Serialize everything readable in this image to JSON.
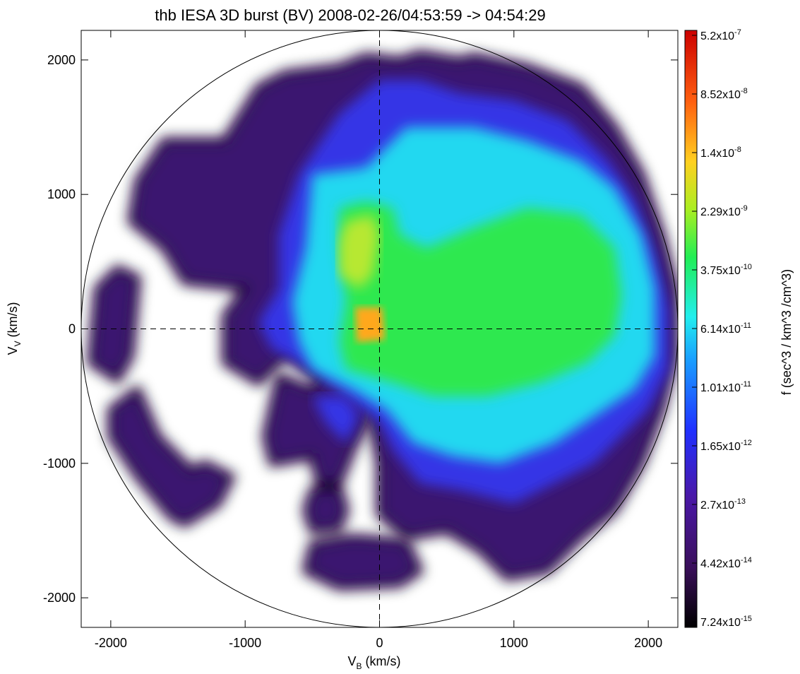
{
  "chart_data": {
    "type": "heatmap",
    "title": "thb IESA 3D burst (BV) 2008-02-26/04:53:59 -> 04:54:29",
    "xlabel": {
      "main": "V",
      "sub": "B",
      "unit": " (km/s)"
    },
    "ylabel": {
      "main": "V",
      "sub": "V",
      "unit": " (km/s)"
    },
    "xlim": [
      -2220,
      2220
    ],
    "ylim": [
      -2220,
      2220
    ],
    "x_ticks": [
      -2000,
      -1000,
      0,
      1000,
      2000
    ],
    "y_ticks": [
      -2000,
      -1000,
      0,
      1000,
      2000
    ],
    "x_tick_labels": [
      "-2000",
      "-1000",
      "0",
      "1000",
      "2000"
    ],
    "y_tick_labels": [
      "-2000",
      "-1000",
      "0",
      "1000",
      "2000"
    ],
    "circle_radius": 2220,
    "zero_lines": "dashed",
    "colorbar": {
      "label": "f (sec^3 / km^3 /cm^3)",
      "scale": "log",
      "range": [
        7.24e-15,
        5.2e-07
      ],
      "ticks": [
        {
          "mant": "5.2",
          "exp": "-7"
        },
        {
          "mant": "8.52",
          "exp": "-8"
        },
        {
          "mant": "1.4",
          "exp": "-8"
        },
        {
          "mant": "2.29",
          "exp": "-9"
        },
        {
          "mant": "3.75",
          "exp": "-10"
        },
        {
          "mant": "6.14",
          "exp": "-11"
        },
        {
          "mant": "1.01",
          "exp": "-11"
        },
        {
          "mant": "1.65",
          "exp": "-12"
        },
        {
          "mant": "2.7",
          "exp": "-13"
        },
        {
          "mant": "4.42",
          "exp": "-14"
        },
        {
          "mant": "7.24",
          "exp": "-15"
        }
      ]
    },
    "regions": [
      {
        "level": "purple",
        "polygons": [
          [
            [
              -1800,
              1100
            ],
            [
              -1600,
              1400
            ],
            [
              -1150,
              1400
            ],
            [
              -900,
              1800
            ],
            [
              -700,
              1900
            ],
            [
              -300,
              1950
            ],
            [
              -100,
              2030
            ],
            [
              150,
              2000
            ],
            [
              300,
              2050
            ],
            [
              600,
              2000
            ],
            [
              700,
              2030
            ],
            [
              1100,
              1950
            ],
            [
              1500,
              1800
            ],
            [
              1750,
              1500
            ],
            [
              1950,
              1150
            ],
            [
              2100,
              700
            ],
            [
              2200,
              300
            ],
            [
              2200,
              -200
            ],
            [
              2100,
              -600
            ],
            [
              1950,
              -1000
            ],
            [
              1750,
              -1350
            ],
            [
              1500,
              -1550
            ],
            [
              1250,
              -1800
            ],
            [
              950,
              -1850
            ],
            [
              750,
              -1650
            ],
            [
              500,
              -1500
            ],
            [
              200,
              -1550
            ],
            [
              0,
              -1380
            ],
            [
              0,
              -1000
            ],
            [
              -100,
              -500
            ],
            [
              -500,
              -350
            ],
            [
              -700,
              -200
            ],
            [
              -900,
              -400
            ],
            [
              -1150,
              -250
            ],
            [
              -1150,
              100
            ],
            [
              -1000,
              300
            ],
            [
              -1450,
              350
            ],
            [
              -1600,
              600
            ],
            [
              -1850,
              800
            ],
            [
              -1800,
              1100
            ]
          ]
        ]
      },
      {
        "level": "purple",
        "polygons": [
          [
            [
              -300,
              -150
            ],
            [
              -500,
              -450
            ],
            [
              -750,
              -350
            ],
            [
              -850,
              -800
            ],
            [
              -800,
              -1000
            ],
            [
              -500,
              -950
            ],
            [
              -450,
              -1150
            ],
            [
              -300,
              -1150
            ],
            [
              -200,
              -900
            ],
            [
              -100,
              -700
            ],
            [
              -50,
              -500
            ],
            [
              0,
              -300
            ],
            [
              -300,
              -150
            ]
          ],
          [
            [
              -500,
              -1200
            ],
            [
              -300,
              -1180
            ],
            [
              -250,
              -1350
            ],
            [
              -300,
              -1480
            ],
            [
              -500,
              -1500
            ],
            [
              -550,
              -1350
            ],
            [
              -500,
              -1200
            ]
          ],
          [
            [
              -500,
              -1600
            ],
            [
              -200,
              -1550
            ],
            [
              200,
              -1580
            ],
            [
              300,
              -1800
            ],
            [
              150,
              -1900
            ],
            [
              -300,
              -1920
            ],
            [
              -550,
              -1800
            ],
            [
              -500,
              -1600
            ]
          ],
          [
            [
              -2100,
              300
            ],
            [
              -1950,
              450
            ],
            [
              -1800,
              380
            ],
            [
              -1850,
              -200
            ],
            [
              -1950,
              -380
            ],
            [
              -2150,
              -250
            ],
            [
              -2100,
              300
            ]
          ],
          [
            [
              -2000,
              -600
            ],
            [
              -1800,
              -450
            ],
            [
              -1650,
              -800
            ],
            [
              -1400,
              -1050
            ],
            [
              -1300,
              -1000
            ],
            [
              -1100,
              -1100
            ],
            [
              -1200,
              -1300
            ],
            [
              -1450,
              -1450
            ],
            [
              -1550,
              -1400
            ],
            [
              -1800,
              -1100
            ],
            [
              -2000,
              -800
            ],
            [
              -2000,
              -600
            ]
          ]
        ]
      },
      {
        "level": "blue",
        "polygons": [
          [
            [
              -600,
              1150
            ],
            [
              -300,
              1600
            ],
            [
              0,
              1850
            ],
            [
              300,
              1850
            ],
            [
              600,
              1750
            ],
            [
              1000,
              1700
            ],
            [
              1400,
              1550
            ],
            [
              1700,
              1250
            ],
            [
              1900,
              950
            ],
            [
              2050,
              550
            ],
            [
              2150,
              150
            ],
            [
              2150,
              -300
            ],
            [
              2000,
              -600
            ],
            [
              1800,
              -800
            ],
            [
              1600,
              -1000
            ],
            [
              1300,
              -1150
            ],
            [
              1000,
              -1300
            ],
            [
              600,
              -1200
            ],
            [
              300,
              -1150
            ],
            [
              100,
              -900
            ],
            [
              0,
              -700
            ],
            [
              -250,
              -500
            ],
            [
              -600,
              -250
            ],
            [
              -800,
              -150
            ],
            [
              -900,
              50
            ],
            [
              -750,
              300
            ],
            [
              -750,
              700
            ],
            [
              -600,
              1150
            ]
          ]
        ]
      },
      {
        "level": "blue",
        "polygons": [
          [
            [
              -500,
              -500
            ],
            [
              -400,
              -700
            ],
            [
              -250,
              -850
            ],
            [
              -150,
              -650
            ],
            [
              -250,
              -500
            ],
            [
              -500,
              -500
            ]
          ]
        ]
      },
      {
        "level": "cyan",
        "polygons": [
          [
            [
              -500,
              1150
            ],
            [
              -100,
              1200
            ],
            [
              200,
              1500
            ],
            [
              700,
              1500
            ],
            [
              1100,
              1400
            ],
            [
              1500,
              1250
            ],
            [
              1750,
              1050
            ],
            [
              1950,
              700
            ],
            [
              2050,
              300
            ],
            [
              2050,
              -200
            ],
            [
              1900,
              -450
            ],
            [
              1600,
              -650
            ],
            [
              1300,
              -850
            ],
            [
              900,
              -1000
            ],
            [
              550,
              -950
            ],
            [
              250,
              -850
            ],
            [
              50,
              -600
            ],
            [
              -200,
              -450
            ],
            [
              -500,
              -300
            ],
            [
              -600,
              -100
            ],
            [
              -650,
              200
            ],
            [
              -550,
              600
            ],
            [
              -500,
              1150
            ]
          ]
        ]
      },
      {
        "level": "green",
        "polygons": [
          [
            [
              -300,
              900
            ],
            [
              -100,
              950
            ],
            [
              100,
              900
            ],
            [
              150,
              700
            ],
            [
              350,
              600
            ],
            [
              700,
              750
            ],
            [
              1100,
              900
            ],
            [
              1500,
              850
            ],
            [
              1750,
              600
            ],
            [
              1800,
              250
            ],
            [
              1750,
              -50
            ],
            [
              1550,
              -250
            ],
            [
              1200,
              -400
            ],
            [
              800,
              -500
            ],
            [
              400,
              -500
            ],
            [
              100,
              -400
            ],
            [
              -250,
              -300
            ],
            [
              -300,
              -100
            ],
            [
              -250,
              200
            ],
            [
              -300,
              600
            ],
            [
              -300,
              900
            ]
          ]
        ]
      },
      {
        "level": "yellowgreen",
        "polygons": [
          [
            [
              -250,
              800
            ],
            [
              -50,
              850
            ],
            [
              0,
              700
            ],
            [
              -50,
              400
            ],
            [
              -150,
              300
            ],
            [
              -300,
              400
            ],
            [
              -300,
              650
            ],
            [
              -250,
              800
            ]
          ]
        ]
      },
      {
        "level": "orange",
        "polygons": [
          [
            [
              -180,
              160
            ],
            [
              20,
              160
            ],
            [
              40,
              -80
            ],
            [
              -170,
              -100
            ],
            [
              -180,
              160
            ]
          ]
        ]
      }
    ]
  }
}
